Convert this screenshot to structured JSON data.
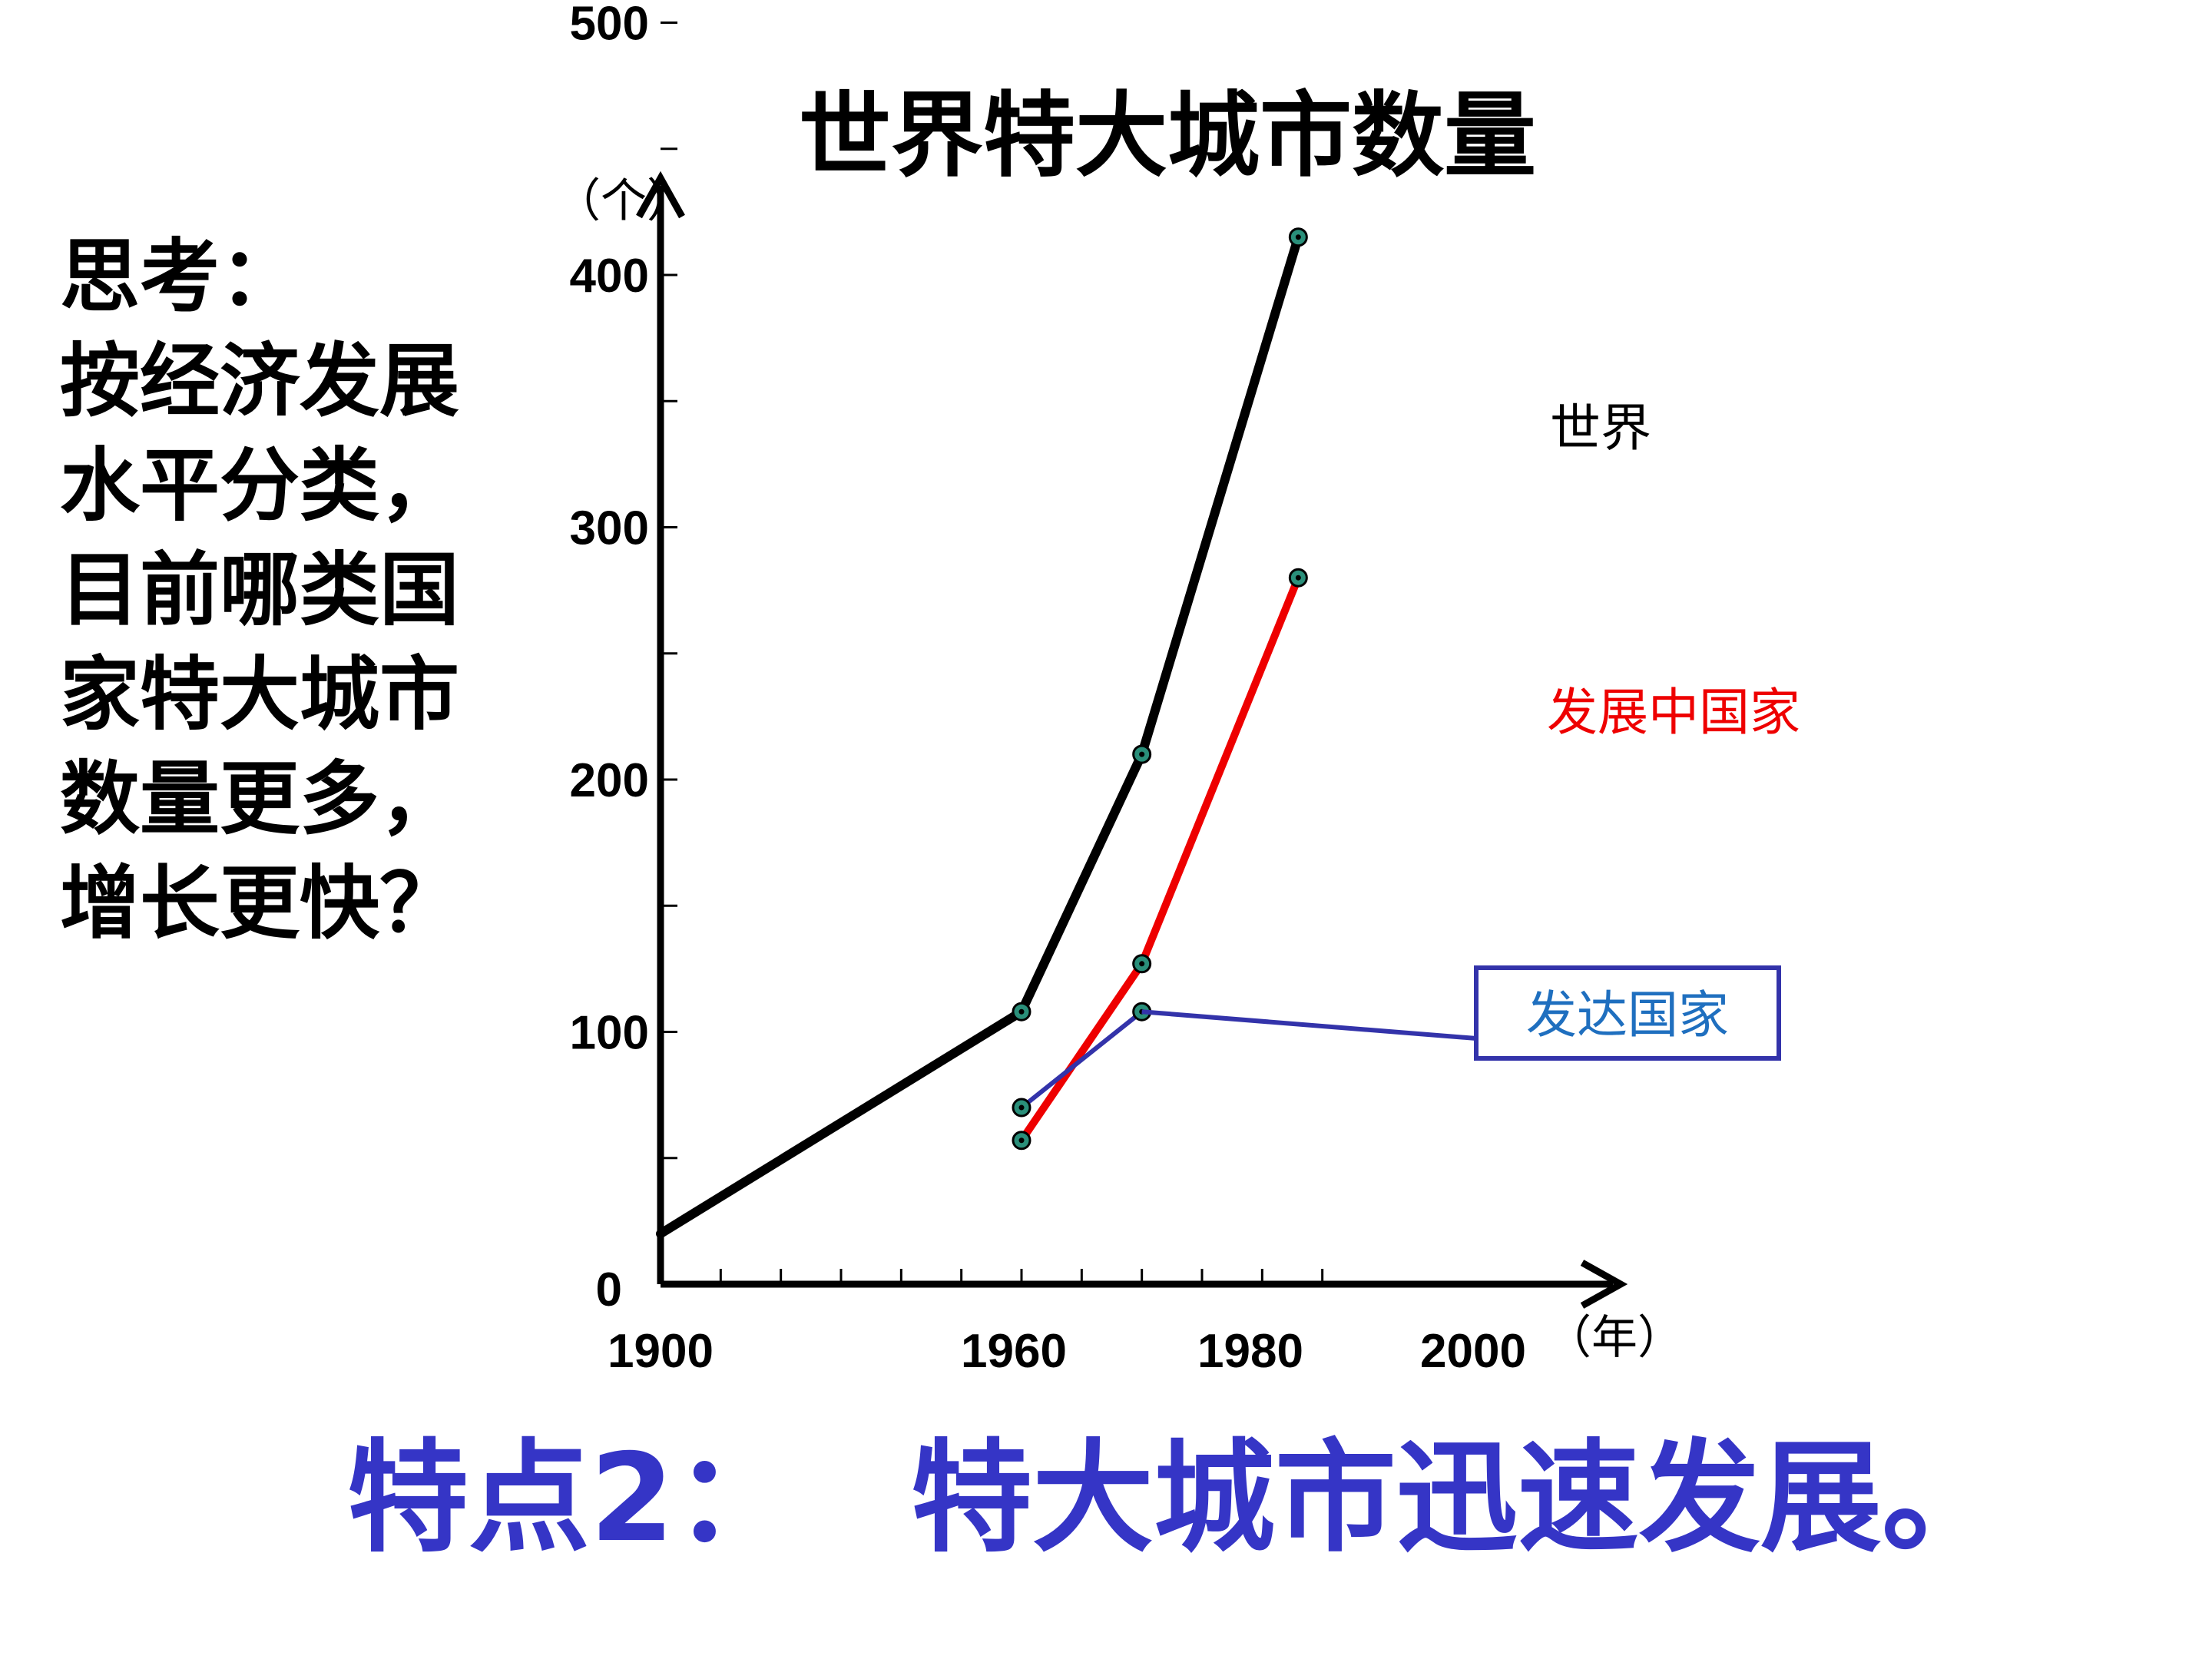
{
  "slide": {
    "title": "世界特大城市数量",
    "question_lines": [
      "思考：",
      "按经济发展",
      "水平分类，",
      "目前哪类国",
      "家特大城市",
      "数量更多，",
      "增长更快？"
    ],
    "feature_prefix": "特点2：",
    "feature_text": "特大城市迅速发展。"
  },
  "chart_data": {
    "type": "line",
    "title": "世界特大城市数量",
    "y_unit": "（个）",
    "x_unit": "（年）",
    "ylim": [
      0,
      500
    ],
    "xlim": [
      1900,
      2015
    ],
    "y_ticks": [
      0,
      100,
      200,
      300,
      400,
      500
    ],
    "x_tick_labels": [
      1900,
      1960,
      1980,
      2000
    ],
    "grid": false,
    "series": [
      {
        "name": "世界",
        "color": "#000000",
        "points": [
          [
            1900,
            20
          ],
          [
            1960,
            108
          ],
          [
            1980,
            210
          ],
          [
            2006,
            415
          ]
        ]
      },
      {
        "name": "发展中国家",
        "color": "#ee0000",
        "points": [
          [
            1960,
            57
          ],
          [
            1980,
            127
          ],
          [
            2006,
            280
          ]
        ]
      },
      {
        "name": "发达国家",
        "color": "#3333aa",
        "points": [
          [
            1960,
            70
          ],
          [
            1980,
            108
          ]
        ]
      }
    ]
  },
  "colors": {
    "feature_text": "#3535c6",
    "developed_label": "#1f6fbf",
    "developing_label": "#ee0000"
  }
}
